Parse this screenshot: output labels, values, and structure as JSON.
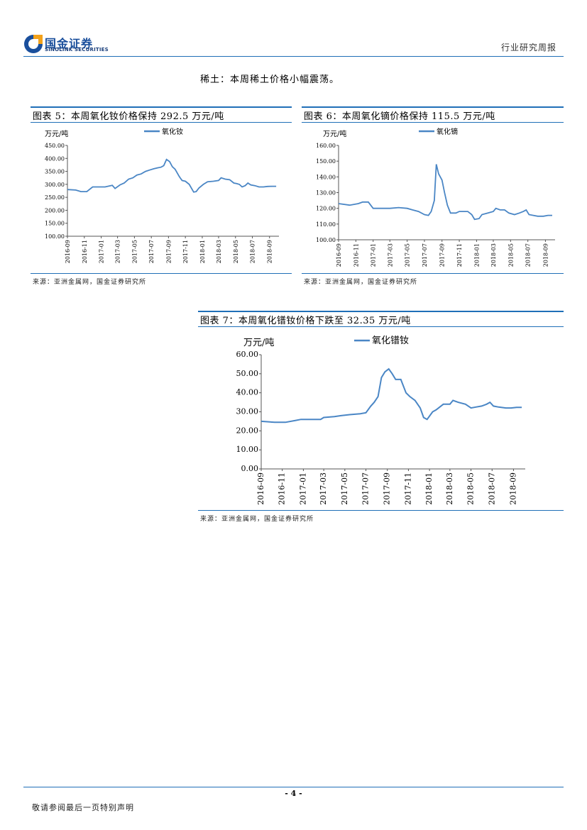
{
  "header": {
    "logo_cn": "国金证券",
    "logo_en": "SINOLINK SECURITIES",
    "report_type": "行业研究周报"
  },
  "intro_text": "稀土：本周稀土价格小幅震荡。",
  "figures": [
    {
      "title": "图表 5：本周氧化钕价格保持 292.5 万元/吨",
      "source": "来源：亚洲金属网，国金证券研究所"
    },
    {
      "title": "图表 6：本周氧化镝价格保持 115.5 万元/吨",
      "source": "来源：亚洲金属网，国金证券研究所"
    },
    {
      "title": "图表 7：本周氧化镨钕价格下跌至 32.35 万元/吨",
      "source": "来源：亚洲金属网，国金证券研究所"
    }
  ],
  "chart_data": [
    {
      "type": "line",
      "ylabel": "万元/吨",
      "ylim": [
        100,
        450
      ],
      "yticks": [
        "100.00",
        "150.00",
        "200.00",
        "250.00",
        "300.00",
        "350.00",
        "400.00",
        "450.00"
      ],
      "xticks": [
        "2016-09",
        "2016-11",
        "2017-01",
        "2017-03",
        "2017-05",
        "2017-07",
        "2017-09",
        "2017-11",
        "2018-01",
        "2018-03",
        "2018-05",
        "2018-07",
        "2018-09"
      ],
      "series": [
        {
          "name": "氧化钕",
          "color": "#4a86c5",
          "x": [
            "2016-09-01",
            "2016-10-01",
            "2016-10-20",
            "2016-11-10",
            "2016-12-01",
            "2016-12-15",
            "2017-01-15",
            "2017-02-10",
            "2017-02-20",
            "2017-03-10",
            "2017-03-25",
            "2017-04-10",
            "2017-04-25",
            "2017-05-10",
            "2017-05-25",
            "2017-06-10",
            "2017-06-25",
            "2017-07-10",
            "2017-07-25",
            "2017-08-05",
            "2017-08-15",
            "2017-08-25",
            "2017-09-05",
            "2017-09-15",
            "2017-09-25",
            "2017-10-10",
            "2017-10-20",
            "2017-11-01",
            "2017-11-15",
            "2017-12-01",
            "2017-12-10",
            "2017-12-20",
            "2018-01-05",
            "2018-01-20",
            "2018-02-10",
            "2018-03-01",
            "2018-03-10",
            "2018-03-25",
            "2018-04-10",
            "2018-04-25",
            "2018-05-05",
            "2018-05-15",
            "2018-05-25",
            "2018-06-05",
            "2018-06-15",
            "2018-06-25",
            "2018-07-10",
            "2018-07-25",
            "2018-08-10",
            "2018-08-25",
            "2018-09-10",
            "2018-09-25"
          ],
          "values": [
            280,
            278,
            272,
            272,
            290,
            290,
            290,
            296,
            284,
            298,
            305,
            320,
            325,
            336,
            340,
            350,
            355,
            360,
            364,
            366,
            372,
            396,
            388,
            368,
            358,
            330,
            315,
            312,
            300,
            270,
            272,
            286,
            300,
            310,
            312,
            315,
            325,
            320,
            318,
            305,
            303,
            300,
            290,
            295,
            305,
            298,
            295,
            290,
            290,
            292,
            292.5,
            292.5
          ]
        }
      ]
    },
    {
      "type": "line",
      "ylabel": "万元/吨",
      "ylim": [
        100,
        160
      ],
      "yticks": [
        "100.00",
        "110.00",
        "120.00",
        "130.00",
        "140.00",
        "150.00",
        "160.00"
      ],
      "xticks": [
        "2016-09",
        "2016-11",
        "2017-01",
        "2017-03",
        "2017-05",
        "2017-07",
        "2017-09",
        "2017-11",
        "2018-01",
        "2018-03",
        "2018-05",
        "2018-07",
        "2018-09"
      ],
      "series": [
        {
          "name": "氧化镝",
          "color": "#4a86c5",
          "x": [
            "2016-09-01",
            "2016-10-10",
            "2016-11-10",
            "2016-11-25",
            "2016-12-15",
            "2017-01-01",
            "2017-01-20",
            "2017-02-10",
            "2017-03-01",
            "2017-04-01",
            "2017-05-01",
            "2017-05-20",
            "2017-06-10",
            "2017-07-01",
            "2017-07-15",
            "2017-07-25",
            "2017-08-05",
            "2017-08-12",
            "2017-08-20",
            "2017-09-01",
            "2017-09-10",
            "2017-09-20",
            "2017-10-01",
            "2017-10-20",
            "2017-11-01",
            "2017-12-01",
            "2017-12-15",
            "2017-12-25",
            "2018-01-10",
            "2018-01-20",
            "2018-02-10",
            "2018-03-01",
            "2018-03-10",
            "2018-03-25",
            "2018-04-10",
            "2018-04-25",
            "2018-05-15",
            "2018-06-01",
            "2018-06-15",
            "2018-06-25",
            "2018-07-05",
            "2018-07-20",
            "2018-08-05",
            "2018-08-25",
            "2018-09-10",
            "2018-09-25"
          ],
          "values": [
            123,
            122,
            123,
            124,
            124,
            120,
            120,
            120,
            120,
            120.5,
            120,
            119,
            118,
            116,
            115.5,
            118,
            125,
            148,
            142,
            138,
            130,
            122,
            117,
            117,
            118,
            118,
            116,
            113,
            113.5,
            116,
            117,
            118,
            120,
            119,
            119,
            117,
            116,
            117,
            118,
            119,
            116,
            115.5,
            115,
            115,
            115.5,
            115.5
          ]
        }
      ]
    },
    {
      "type": "line",
      "ylabel": "万元/吨",
      "ylim": [
        0,
        60
      ],
      "yticks": [
        "0.00",
        "10.00",
        "20.00",
        "30.00",
        "40.00",
        "50.00",
        "60.00"
      ],
      "xticks": [
        "2016-09",
        "2016-11",
        "2017-01",
        "2017-03",
        "2017-05",
        "2017-07",
        "2017-09",
        "2017-11",
        "2018-01",
        "2018-03",
        "2018-05",
        "2018-07",
        "2018-09"
      ],
      "series": [
        {
          "name": "氧化镨钕",
          "color": "#4a86c5",
          "x": [
            "2016-09-01",
            "2016-10-10",
            "2016-11-10",
            "2016-12-10",
            "2016-12-25",
            "2017-01-20",
            "2017-02-20",
            "2017-03-01",
            "2017-04-01",
            "2017-04-20",
            "2017-05-15",
            "2017-06-15",
            "2017-07-01",
            "2017-07-15",
            "2017-07-25",
            "2017-08-05",
            "2017-08-15",
            "2017-08-25",
            "2017-09-05",
            "2017-09-15",
            "2017-09-25",
            "2017-10-10",
            "2017-10-25",
            "2017-11-05",
            "2017-11-20",
            "2017-12-05",
            "2017-12-15",
            "2017-12-25",
            "2018-01-10",
            "2018-01-20",
            "2018-02-10",
            "2018-03-01",
            "2018-03-10",
            "2018-03-25",
            "2018-04-15",
            "2018-05-01",
            "2018-05-15",
            "2018-06-01",
            "2018-06-15",
            "2018-06-25",
            "2018-07-05",
            "2018-07-20",
            "2018-08-10",
            "2018-08-25",
            "2018-09-10",
            "2018-09-25"
          ],
          "values": [
            25,
            24.5,
            24.5,
            25.5,
            26,
            26,
            26,
            27,
            27.5,
            28,
            28.5,
            29,
            29.5,
            33,
            35,
            38,
            48,
            51,
            52.5,
            50,
            47,
            47,
            40,
            38,
            36,
            32,
            27,
            26,
            30,
            31,
            34,
            34,
            36,
            35,
            34,
            32,
            32.5,
            33,
            34,
            35,
            33,
            32.5,
            32,
            32,
            32.35,
            32.35
          ]
        }
      ]
    }
  ],
  "page_number": "- 4 -",
  "footer_disclaimer": "敬请参阅最后一页特别声明"
}
